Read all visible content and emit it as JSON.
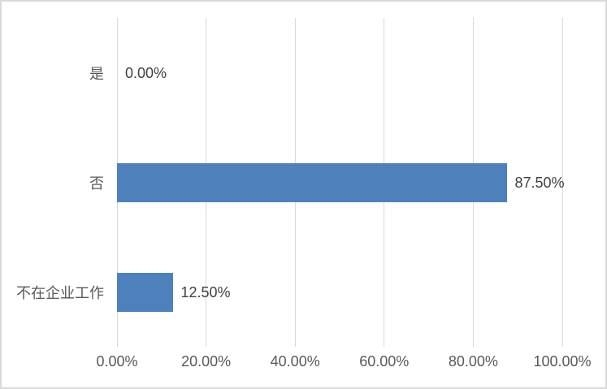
{
  "chart_data": {
    "type": "bar",
    "orientation": "horizontal",
    "title": "",
    "categories": [
      "是",
      "否",
      "不在企业工作"
    ],
    "values": [
      0,
      87.5,
      12.5
    ],
    "value_labels": [
      "0.00%",
      "87.50%",
      "12.50%"
    ],
    "x_ticks": [
      {
        "value": 0,
        "label": "0.00%"
      },
      {
        "value": 20,
        "label": "20.00%"
      },
      {
        "value": 40,
        "label": "40.00%"
      },
      {
        "value": 60,
        "label": "60.00%"
      },
      {
        "value": 80,
        "label": "80.00%"
      },
      {
        "value": 100,
        "label": "100.00%"
      }
    ],
    "xlim": [
      0,
      100
    ],
    "grid": "vertical-gridlines-on",
    "legend": "none",
    "colors": {
      "bar": "#4E80BC",
      "gridline": "#D9D9D9",
      "frame_border": "#D9D9D9",
      "axis_text": "#595959",
      "value_label_text": "#404040",
      "background": "#FFFFFF"
    }
  }
}
